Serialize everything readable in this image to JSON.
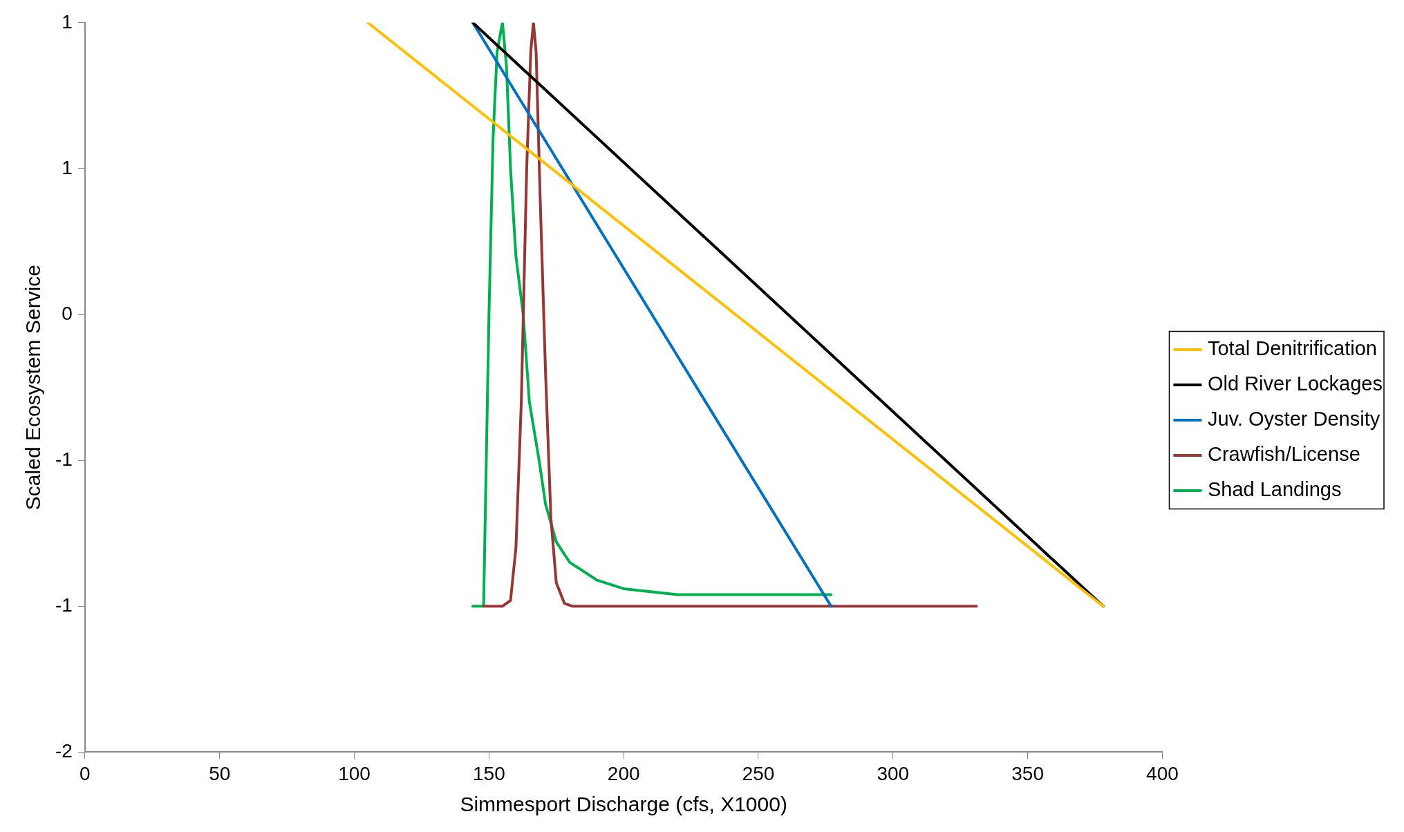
{
  "chart_data": {
    "type": "line",
    "xlabel": "Simmesport Discharge (cfs, X1000)",
    "ylabel": "Scaled Ecosystem Service",
    "xlim": [
      0,
      400
    ],
    "xticks": [
      0,
      50,
      100,
      150,
      200,
      250,
      300,
      350,
      400
    ],
    "ylim": [
      -1.5,
      1
    ],
    "yticks": [
      {
        "value": -1.5,
        "label": "-2"
      },
      {
        "value": -1,
        "label": "-1"
      },
      {
        "value": -0.5,
        "label": "-1"
      },
      {
        "value": 0,
        "label": "0"
      },
      {
        "value": 0.5,
        "label": "1"
      },
      {
        "value": 1,
        "label": "1"
      }
    ],
    "grid": false,
    "legend": "right",
    "marker": "none",
    "line_style": "solid",
    "series": [
      {
        "name": "Total Denitrification",
        "color": "#ffc000",
        "x": [
          105,
          378
        ],
        "values": [
          1,
          -1
        ]
      },
      {
        "name": "Old River Lockages",
        "color": "#000000",
        "x": [
          144,
          378
        ],
        "values": [
          1,
          -1
        ]
      },
      {
        "name": "Juv. Oyster Density",
        "color": "#0070c0",
        "x": [
          144,
          277
        ],
        "values": [
          1,
          -1
        ]
      },
      {
        "name": "Crawfish/License",
        "color": "#953735",
        "x": [
          148,
          155,
          158,
          160,
          162,
          164,
          165.5,
          166.5,
          167.5,
          169,
          171,
          173,
          175,
          178,
          181,
          331
        ],
        "values": [
          -1,
          -1,
          -0.98,
          -0.8,
          -0.3,
          0.5,
          0.9,
          1,
          0.9,
          0.4,
          -0.2,
          -0.7,
          -0.92,
          -0.99,
          -1,
          -1
        ]
      },
      {
        "name": "Shad Landings",
        "color": "#00b050",
        "x": [
          144,
          148,
          149,
          150,
          151.5,
          153,
          155,
          156.5,
          158,
          160,
          162.7,
          165,
          168.6,
          171,
          175,
          180,
          190,
          200,
          220,
          277
        ],
        "values": [
          -1,
          -1,
          -0.5,
          0,
          0.6,
          0.9,
          1,
          0.85,
          0.5,
          0.2,
          0,
          -0.3,
          -0.5,
          -0.65,
          -0.78,
          -0.85,
          -0.91,
          -0.94,
          -0.96,
          -0.96
        ]
      }
    ]
  }
}
